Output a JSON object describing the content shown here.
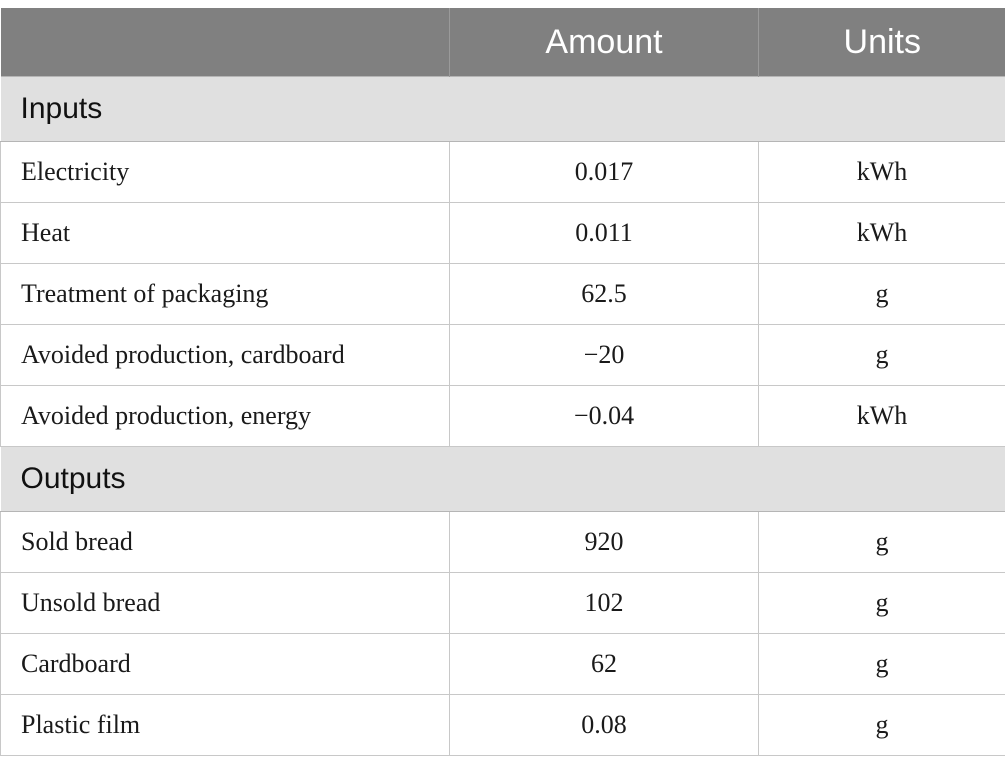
{
  "header": {
    "col_label": "",
    "amount": "Amount",
    "units": "Units"
  },
  "sections": [
    {
      "title": "Inputs",
      "rows": [
        {
          "label": "Electricity",
          "amount": "0.017",
          "unit": "kWh"
        },
        {
          "label": "Heat",
          "amount": "0.011",
          "unit": "kWh"
        },
        {
          "label": "Treatment of packaging",
          "amount": "62.5",
          "unit": "g"
        },
        {
          "label": "Avoided production, cardboard",
          "amount": "−20",
          "unit": "g"
        },
        {
          "label": "Avoided production, energy",
          "amount": "−0.04",
          "unit": "kWh"
        }
      ]
    },
    {
      "title": "Outputs",
      "rows": [
        {
          "label": "Sold bread",
          "amount": "920",
          "unit": "g"
        },
        {
          "label": "Unsold bread",
          "amount": "102",
          "unit": "g"
        },
        {
          "label": "Cardboard",
          "amount": "62",
          "unit": "g"
        },
        {
          "label": "Plastic film",
          "amount": "0.08",
          "unit": "g"
        }
      ]
    }
  ]
}
